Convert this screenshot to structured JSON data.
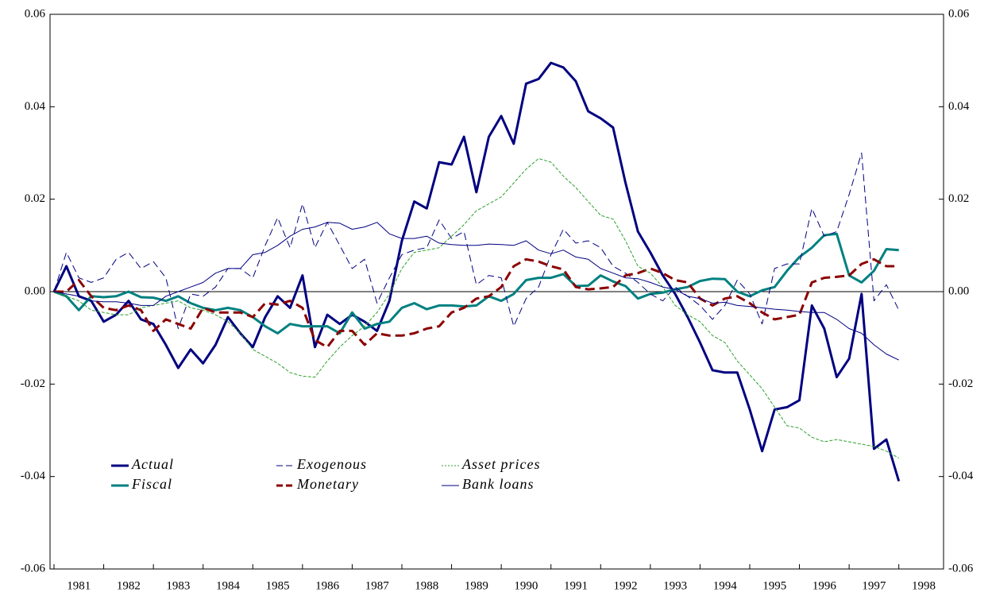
{
  "chart_data": {
    "type": "line",
    "x": [
      1981,
      1981.25,
      1981.5,
      1981.75,
      1982,
      1982.25,
      1982.5,
      1982.75,
      1983,
      1983.25,
      1983.5,
      1983.75,
      1984,
      1984.25,
      1984.5,
      1984.75,
      1985,
      1985.25,
      1985.5,
      1985.75,
      1986,
      1986.25,
      1986.5,
      1986.75,
      1987,
      1987.25,
      1987.5,
      1987.75,
      1988,
      1988.25,
      1988.5,
      1988.75,
      1989,
      1989.25,
      1989.5,
      1989.75,
      1990,
      1990.25,
      1990.5,
      1990.75,
      1991,
      1991.25,
      1991.5,
      1991.75,
      1992,
      1992.25,
      1992.5,
      1992.75,
      1993,
      1993.25,
      1993.5,
      1993.75,
      1994,
      1994.25,
      1994.5,
      1994.75,
      1995,
      1995.25,
      1995.5,
      1995.75,
      1996,
      1996.25,
      1996.5,
      1996.75,
      1997,
      1997.25,
      1997.5,
      1997.75,
      1998
    ],
    "series": [
      {
        "name": "Actual",
        "color": "#000080",
        "style": "thick",
        "values": [
          0,
          0.0055,
          -0.001,
          -0.002,
          -0.0065,
          -0.005,
          -0.002,
          -0.006,
          -0.007,
          -0.0115,
          -0.0165,
          -0.0125,
          -0.0155,
          -0.0115,
          -0.0055,
          -0.009,
          -0.012,
          -0.0055,
          -0.001,
          -0.0035,
          0.0035,
          -0.012,
          -0.005,
          -0.007,
          -0.005,
          -0.0065,
          -0.0085,
          -0.002,
          0.011,
          0.0195,
          0.018,
          0.028,
          0.0275,
          0.0335,
          0.0215,
          0.0335,
          0.038,
          0.032,
          0.045,
          0.046,
          0.0495,
          0.0485,
          0.0455,
          0.039,
          0.0375,
          0.0355,
          0.0235,
          0.013,
          0.0085,
          0.0035,
          -0.0005,
          -0.0055,
          -0.011,
          -0.017,
          -0.0175,
          -0.0175,
          -0.0255,
          -0.0345,
          -0.0255,
          -0.025,
          -0.0235,
          -0.003,
          -0.008,
          -0.0185,
          -0.0145,
          -0.0005,
          -0.034,
          -0.032,
          -0.041
        ]
      },
      {
        "name": "Fiscal",
        "color": "#008080",
        "style": "thick",
        "values": [
          0,
          -0.001,
          -0.004,
          -0.001,
          -0.0012,
          -0.001,
          0,
          -0.0012,
          -0.0013,
          -0.002,
          -0.001,
          -0.0025,
          -0.0035,
          -0.004,
          -0.0035,
          -0.004,
          -0.0055,
          -0.0075,
          -0.009,
          -0.007,
          -0.0075,
          -0.0075,
          -0.0075,
          -0.009,
          -0.0045,
          -0.008,
          -0.007,
          -0.0065,
          -0.0035,
          -0.0025,
          -0.0038,
          -0.003,
          -0.003,
          -0.0032,
          -0.003,
          -0.001,
          -0.002,
          -0.0005,
          0.0025,
          0.003,
          0.003,
          0.0038,
          0.0012,
          0.0013,
          0.0035,
          0.0022,
          0.0012,
          -0.0015,
          -0.0005,
          -0.0002,
          0.0005,
          0.001,
          0.0023,
          0.0028,
          0.0027,
          0,
          -0.001,
          0.0003,
          0.001,
          0.0045,
          0.0075,
          0.0095,
          0.0122,
          0.0125,
          0.0035,
          0.002,
          0.0045,
          0.0092,
          0.009
        ]
      },
      {
        "name": "Exogenous",
        "color": "#000080",
        "style": "dashed",
        "values": [
          0,
          0.0085,
          0.003,
          0.002,
          0.003,
          0.007,
          0.0085,
          0.005,
          0.0065,
          0.003,
          -0.008,
          -0.0005,
          -0.001,
          0.001,
          0.005,
          0.005,
          0.003,
          0.01,
          0.016,
          0.0095,
          0.019,
          0.0095,
          0.015,
          0.01,
          0.005,
          0.007,
          -0.0025,
          0.003,
          0.008,
          0.009,
          0.0095,
          0.0155,
          0.0115,
          0.013,
          0.0015,
          0.0035,
          0.003,
          -0.0075,
          -0.0015,
          0.001,
          0.008,
          0.0135,
          0.0105,
          0.011,
          0.0095,
          0.0055,
          0.004,
          0.002,
          -0.0005,
          -0.002,
          0.001,
          -0.001,
          -0.003,
          -0.006,
          -0.003,
          0.0025,
          -0.0005,
          -0.007,
          0.005,
          0.006,
          0.006,
          0.018,
          0.012,
          0.013,
          0.021,
          0.03,
          -0.002,
          0.0015,
          -0.004
        ]
      },
      {
        "name": "Monetary",
        "color": "#8b0000",
        "style": "thick-dashed",
        "values": [
          0,
          0,
          0.0025,
          -0.001,
          -0.0035,
          -0.004,
          -0.003,
          -0.004,
          -0.0085,
          -0.006,
          -0.007,
          -0.008,
          -0.0035,
          -0.0045,
          -0.0045,
          -0.0045,
          -0.0055,
          -0.0025,
          -0.0028,
          -0.002,
          -0.0035,
          -0.0105,
          -0.012,
          -0.0085,
          -0.0085,
          -0.0115,
          -0.009,
          -0.0095,
          -0.0095,
          -0.009,
          -0.008,
          -0.0075,
          -0.0045,
          -0.0035,
          -0.0015,
          -0.001,
          0.001,
          0.0055,
          0.007,
          0.0065,
          0.0055,
          0.0048,
          0.001,
          0.0005,
          0.0007,
          0.001,
          0.0035,
          0.004,
          0.005,
          0.004,
          0.0025,
          0.002,
          -0.0015,
          -0.003,
          -0.0015,
          -0.001,
          -0.0025,
          -0.0045,
          -0.006,
          -0.0055,
          -0.005,
          0.002,
          0.003,
          0.0032,
          0.0035,
          0.006,
          0.007,
          0.0055,
          0.0055
        ]
      },
      {
        "name": "Asset prices",
        "color": "#2ca02c",
        "style": "dotted",
        "values": [
          0,
          -0.001,
          -0.002,
          -0.004,
          -0.0045,
          -0.005,
          -0.005,
          -0.0035,
          -0.003,
          -0.0025,
          -0.002,
          -0.0035,
          -0.004,
          -0.005,
          -0.0065,
          -0.009,
          -0.0125,
          -0.014,
          -0.0155,
          -0.0175,
          -0.0183,
          -0.0185,
          -0.015,
          -0.012,
          -0.0095,
          -0.0075,
          -0.0045,
          -0.0005,
          0.005,
          0.0085,
          0.009,
          0.0095,
          0.012,
          0.0145,
          0.0175,
          0.019,
          0.0205,
          0.0235,
          0.0265,
          0.0288,
          0.028,
          0.025,
          0.0225,
          0.0195,
          0.0165,
          0.0157,
          0.011,
          0.0055,
          0.004,
          0.001,
          -0.003,
          -0.005,
          -0.0065,
          -0.0095,
          -0.011,
          -0.015,
          -0.018,
          -0.021,
          -0.025,
          -0.029,
          -0.0295,
          -0.0315,
          -0.0325,
          -0.032,
          -0.0325,
          -0.033,
          -0.0335,
          -0.0345,
          -0.036
        ]
      },
      {
        "name": "Bank loans",
        "color": "#000080",
        "style": "thin",
        "values": [
          0,
          -0.0005,
          -0.001,
          -0.002,
          -0.0022,
          -0.0022,
          -0.0025,
          -0.003,
          -0.003,
          -0.001,
          0,
          0.001,
          0.002,
          0.004,
          0.005,
          0.005,
          0.008,
          0.0085,
          0.01,
          0.012,
          0.0135,
          0.014,
          0.015,
          0.0148,
          0.0135,
          0.014,
          0.015,
          0.0125,
          0.0115,
          0.0115,
          0.012,
          0.0105,
          0.0102,
          0.01,
          0.01,
          0.0103,
          0.0102,
          0.01,
          0.011,
          0.009,
          0.0082,
          0.009,
          0.0075,
          0.007,
          0.005,
          0.004,
          0.003,
          0.0028,
          0.002,
          0.001,
          0.0005,
          -0.001,
          -0.0015,
          -0.0025,
          -0.0023,
          -0.003,
          -0.0032,
          -0.0035,
          -0.0038,
          -0.004,
          -0.0043,
          -0.0045,
          -0.0045,
          -0.006,
          -0.008,
          -0.009,
          -0.0115,
          -0.0135,
          -0.0148
        ]
      }
    ],
    "xlim": [
      1980.92,
      1998.9
    ],
    "xticks": [
      1981,
      1982,
      1983,
      1984,
      1985,
      1986,
      1987,
      1988,
      1989,
      1990,
      1991,
      1992,
      1993,
      1994,
      1995,
      1996,
      1997,
      1998
    ],
    "ylim": [
      -0.06,
      0.06
    ],
    "yticks": [
      -0.06,
      -0.04,
      -0.02,
      {
        "value": 0,
        "label": "0.00"
      },
      0.02,
      0.04,
      0.06
    ],
    "zero_line": true,
    "legend": "lower left"
  }
}
